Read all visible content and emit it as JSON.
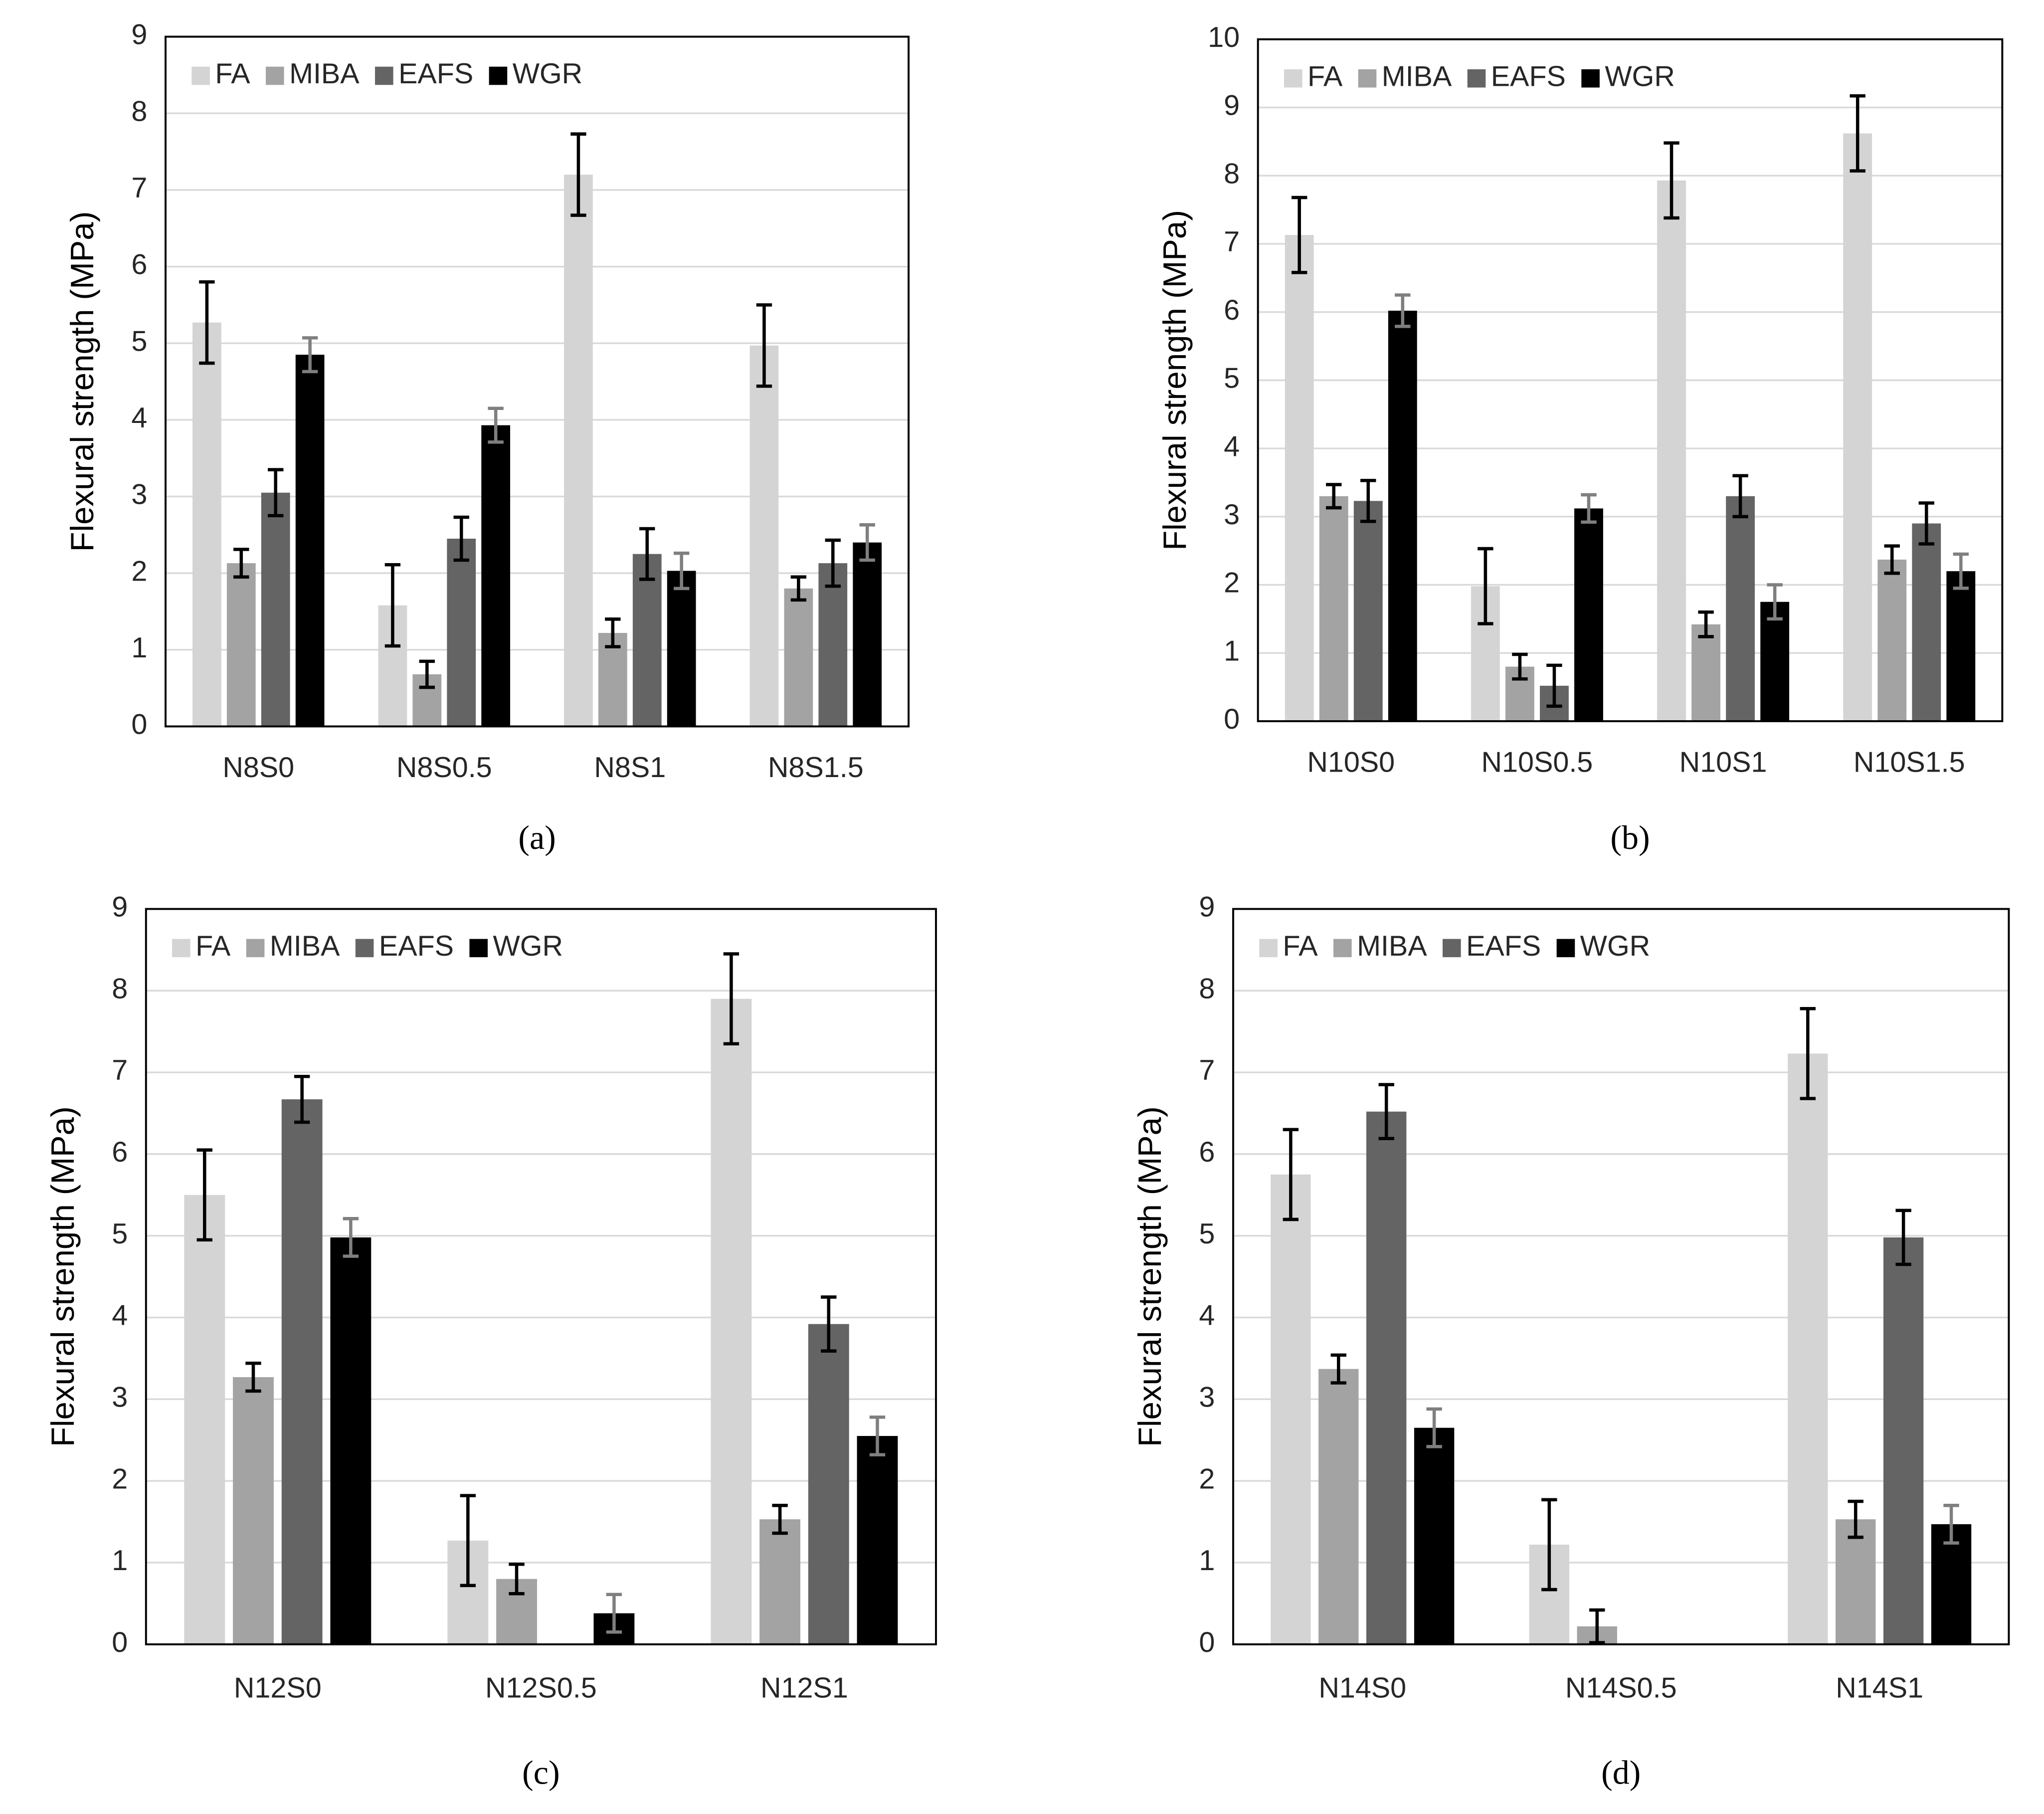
{
  "chart_data": [
    {
      "type": "bar",
      "label": "(a)",
      "y_label": "Flexural strength (MPa)",
      "categories": [
        "N8S0",
        "N8S0.5",
        "N8S1",
        "N8S1.5"
      ],
      "ylim": [
        0,
        9
      ],
      "yticks": [
        0,
        1,
        2,
        3,
        4,
        5,
        6,
        7,
        8,
        9
      ],
      "grid": true,
      "legend": "top-left",
      "series": [
        {
          "name": "FA",
          "color": "#d4d4d4",
          "error_color": "#000000",
          "values": [
            5.27,
            1.58,
            7.2,
            4.97
          ],
          "errors": [
            0.53,
            0.53,
            0.53,
            0.53
          ]
        },
        {
          "name": "MIBA",
          "color": "#a3a3a3",
          "error_color": "#000000",
          "values": [
            2.13,
            0.68,
            1.22,
            1.8
          ],
          "errors": [
            0.18,
            0.17,
            0.18,
            0.15
          ]
        },
        {
          "name": "EAFS",
          "color": "#646464",
          "error_color": "#000000",
          "values": [
            3.05,
            2.45,
            2.25,
            2.13
          ],
          "errors": [
            0.3,
            0.28,
            0.33,
            0.3
          ]
        },
        {
          "name": "WGR",
          "color": "#000000",
          "error_color": "#7f7f7f",
          "values": [
            4.85,
            3.93,
            2.03,
            2.4
          ],
          "errors": [
            0.22,
            0.22,
            0.23,
            0.23
          ]
        }
      ]
    },
    {
      "type": "bar",
      "label": "(b)",
      "y_label": "Flexural strength (MPa)",
      "categories": [
        "N10S0",
        "N10S0.5",
        "N10S1",
        "N10S1.5"
      ],
      "ylim": [
        0,
        10
      ],
      "yticks": [
        0,
        1,
        2,
        3,
        4,
        5,
        6,
        7,
        8,
        9,
        10
      ],
      "grid": true,
      "legend": "top-left",
      "series": [
        {
          "name": "FA",
          "color": "#d4d4d4",
          "error_color": "#000000",
          "values": [
            7.13,
            1.98,
            7.93,
            8.62
          ],
          "errors": [
            0.55,
            0.55,
            0.55,
            0.55
          ]
        },
        {
          "name": "MIBA",
          "color": "#a3a3a3",
          "error_color": "#000000",
          "values": [
            3.3,
            0.8,
            1.42,
            2.37
          ],
          "errors": [
            0.17,
            0.18,
            0.18,
            0.2
          ]
        },
        {
          "name": "EAFS",
          "color": "#646464",
          "error_color": "#000000",
          "values": [
            3.23,
            0.52,
            3.3,
            2.9
          ],
          "errors": [
            0.3,
            0.3,
            0.3,
            0.3
          ]
        },
        {
          "name": "WGR",
          "color": "#000000",
          "error_color": "#7f7f7f",
          "values": [
            6.02,
            3.12,
            1.75,
            2.2
          ],
          "errors": [
            0.23,
            0.2,
            0.25,
            0.25
          ]
        }
      ]
    },
    {
      "type": "bar",
      "label": "(c)",
      "y_label": "Flexural strength (MPa)",
      "categories": [
        "N12S0",
        "N12S0.5",
        "N12S1"
      ],
      "ylim": [
        0,
        9
      ],
      "yticks": [
        0,
        1,
        2,
        3,
        4,
        5,
        6,
        7,
        8,
        9
      ],
      "grid": true,
      "legend": "top-left",
      "series": [
        {
          "name": "FA",
          "color": "#d4d4d4",
          "error_color": "#000000",
          "values": [
            5.5,
            1.27,
            7.9
          ],
          "errors": [
            0.55,
            0.55,
            0.55
          ]
        },
        {
          "name": "MIBA",
          "color": "#a3a3a3",
          "error_color": "#000000",
          "values": [
            3.27,
            0.8,
            1.53
          ],
          "errors": [
            0.17,
            0.18,
            0.17
          ]
        },
        {
          "name": "EAFS",
          "color": "#646464",
          "error_color": "#000000",
          "values": [
            6.67,
            null,
            3.92
          ],
          "errors": [
            0.28,
            null,
            0.33
          ]
        },
        {
          "name": "WGR",
          "color": "#000000",
          "error_color": "#7f7f7f",
          "values": [
            4.98,
            0.38,
            2.55
          ],
          "errors": [
            0.23,
            0.23,
            0.23
          ]
        }
      ]
    },
    {
      "type": "bar",
      "label": "(d)",
      "y_label": "Flexural strength (MPa)",
      "categories": [
        "N14S0",
        "N14S0.5",
        "N14S1"
      ],
      "ylim": [
        0,
        9
      ],
      "yticks": [
        0,
        1,
        2,
        3,
        4,
        5,
        6,
        7,
        8,
        9
      ],
      "grid": true,
      "legend": "top-left",
      "series": [
        {
          "name": "FA",
          "color": "#d4d4d4",
          "error_color": "#000000",
          "values": [
            5.75,
            1.22,
            7.23
          ],
          "errors": [
            0.55,
            0.55,
            0.55
          ]
        },
        {
          "name": "MIBA",
          "color": "#a3a3a3",
          "error_color": "#000000",
          "values": [
            3.37,
            0.22,
            1.53
          ],
          "errors": [
            0.17,
            0.2,
            0.22
          ]
        },
        {
          "name": "EAFS",
          "color": "#646464",
          "error_color": "#000000",
          "values": [
            6.52,
            null,
            4.98
          ],
          "errors": [
            0.33,
            null,
            0.33
          ]
        },
        {
          "name": "WGR",
          "color": "#000000",
          "error_color": "#7f7f7f",
          "values": [
            2.65,
            null,
            1.47
          ],
          "errors": [
            0.23,
            null,
            0.23
          ]
        }
      ]
    }
  ]
}
